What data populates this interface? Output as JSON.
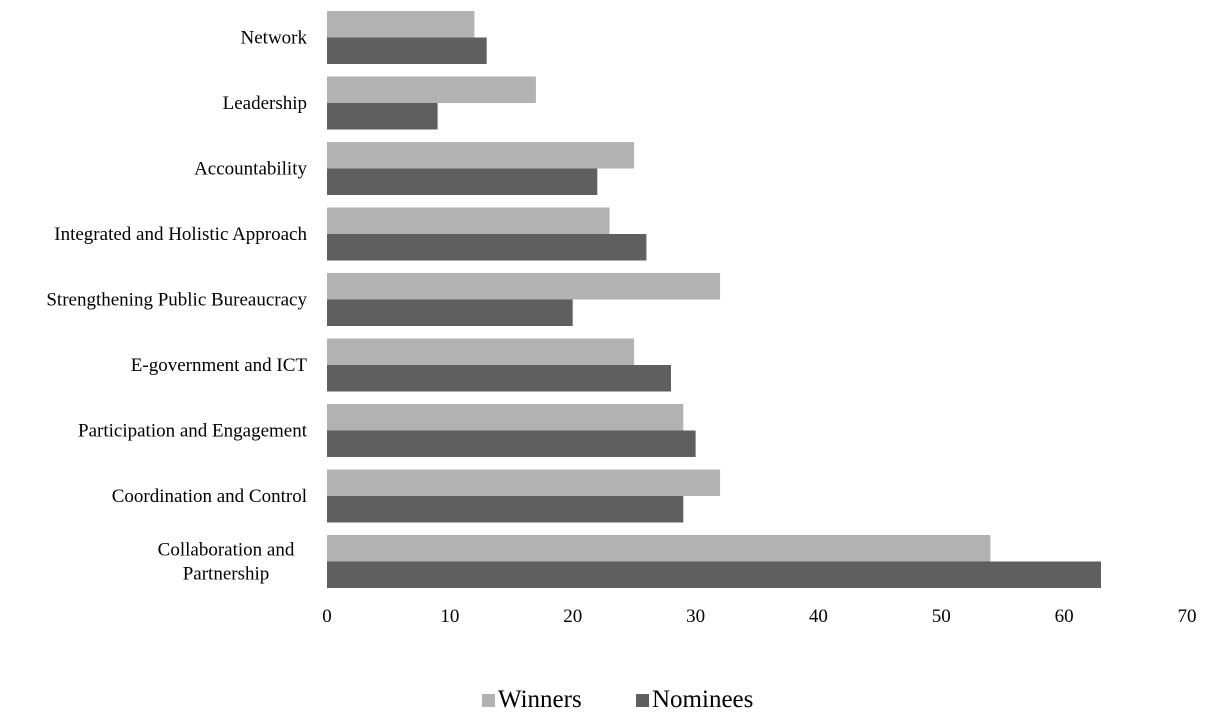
{
  "chart_data": {
    "type": "bar",
    "orientation": "horizontal",
    "categories": [
      "Network",
      "Leadership",
      "Accountability",
      "Integrated and Holistic Approach",
      "Strengthening Public Bureaucracy",
      "E-government and ICT",
      "Participation and Engagement",
      "Coordination and Control",
      "Collaboration and Partnership"
    ],
    "category_label_lines": [
      [
        "Network"
      ],
      [
        "Leadership"
      ],
      [
        "Accountability"
      ],
      [
        "Integrated and Holistic Approach"
      ],
      [
        "Strengthening Public Bureaucracy"
      ],
      [
        "E-government and ICT"
      ],
      [
        "Participation and Engagement"
      ],
      [
        "Coordination and Control"
      ],
      [
        "Collaboration and",
        "Partnership"
      ]
    ],
    "series": [
      {
        "name": "Winners",
        "color": "#b2b2b2",
        "values": [
          12,
          17,
          25,
          23,
          32,
          25,
          29,
          32,
          54
        ]
      },
      {
        "name": "Nominees",
        "color": "#5f5f5f",
        "values": [
          13,
          9,
          22,
          26,
          20,
          28,
          30,
          29,
          63
        ]
      }
    ],
    "xlim": [
      0,
      70
    ],
    "x_ticks": [
      "0",
      "10",
      "20",
      "30",
      "40",
      "50",
      "60",
      "70"
    ],
    "grid": false,
    "legend_position": "bottom-center",
    "title": "",
    "xlabel": "",
    "ylabel": ""
  }
}
